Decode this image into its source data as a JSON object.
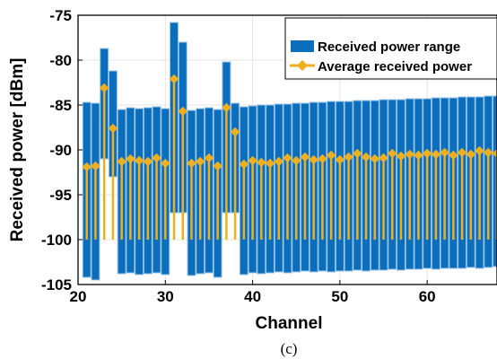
{
  "chart_data": {
    "type": "bar",
    "xlabel": "Channel",
    "ylabel": "Received power [dBm]",
    "caption": "(c)",
    "xlim": [
      20,
      68
    ],
    "ylim": [
      -105,
      -75
    ],
    "xticks": [
      20,
      30,
      40,
      50,
      60
    ],
    "yticks": [
      -105,
      -100,
      -95,
      -90,
      -85,
      -80,
      -75
    ],
    "grid": true,
    "legend_position": "top-right",
    "colors": {
      "range": "#0a6ebd",
      "range_edge": "#9dc6e6",
      "average": "#f0b01e"
    },
    "x": [
      21,
      22,
      23,
      24,
      25,
      26,
      27,
      28,
      29,
      30,
      31,
      32,
      33,
      34,
      35,
      36,
      37,
      38,
      39,
      40,
      41,
      42,
      43,
      44,
      45,
      46,
      47,
      48,
      49,
      50,
      51,
      52,
      53,
      54,
      55,
      56,
      57,
      58,
      59,
      60,
      61,
      62,
      63,
      64,
      65,
      66,
      67,
      68
    ],
    "series": [
      {
        "name": "Received power range",
        "kind": "range",
        "min": [
          -104.2,
          -104.5,
          -91.0,
          -93.0,
          -103.8,
          -103.7,
          -103.9,
          -103.8,
          -103.7,
          -103.9,
          -97.0,
          -97.0,
          -104.0,
          -103.8,
          -103.7,
          -104.2,
          -97.0,
          -97.0,
          -103.9,
          -103.7,
          -103.8,
          -103.7,
          -103.6,
          -103.7,
          -103.6,
          -103.5,
          -103.6,
          -103.5,
          -103.6,
          -103.5,
          -103.5,
          -103.4,
          -103.5,
          -103.4,
          -103.4,
          -103.3,
          -103.4,
          -103.3,
          -103.3,
          -103.2,
          -103.3,
          -103.2,
          -103.2,
          -103.2,
          -103.1,
          -103.2,
          -103.1,
          -103.0
        ],
        "max": [
          -84.7,
          -84.8,
          -78.7,
          -81.2,
          -85.5,
          -85.3,
          -85.4,
          -85.3,
          -85.2,
          -85.4,
          -75.8,
          -78.0,
          -85.6,
          -85.4,
          -85.3,
          -85.5,
          -80.2,
          -84.8,
          -85.2,
          -85.1,
          -85.0,
          -85.0,
          -84.9,
          -84.9,
          -84.8,
          -84.8,
          -84.7,
          -84.7,
          -84.6,
          -84.6,
          -84.6,
          -84.5,
          -84.5,
          -84.5,
          -84.4,
          -84.4,
          -84.4,
          -84.3,
          -84.3,
          -84.3,
          -84.2,
          -84.2,
          -84.2,
          -84.1,
          -84.1,
          -84.1,
          -84.0,
          -84.0
        ]
      },
      {
        "name": "Average received power",
        "kind": "average",
        "values": [
          -91.9,
          -91.8,
          -83.1,
          -87.6,
          -91.3,
          -91.0,
          -91.2,
          -91.3,
          -90.9,
          -91.5,
          -82.1,
          -85.7,
          -91.5,
          -91.3,
          -90.9,
          -91.8,
          -85.3,
          -88.0,
          -91.6,
          -91.2,
          -91.4,
          -91.5,
          -91.3,
          -90.9,
          -91.2,
          -90.8,
          -91.1,
          -91.0,
          -90.6,
          -91.1,
          -90.8,
          -90.4,
          -90.8,
          -91.0,
          -90.9,
          -90.4,
          -90.7,
          -90.5,
          -90.6,
          -90.4,
          -90.5,
          -90.3,
          -90.6,
          -90.3,
          -90.5,
          -90.1,
          -90.3,
          -90.4
        ]
      }
    ]
  }
}
